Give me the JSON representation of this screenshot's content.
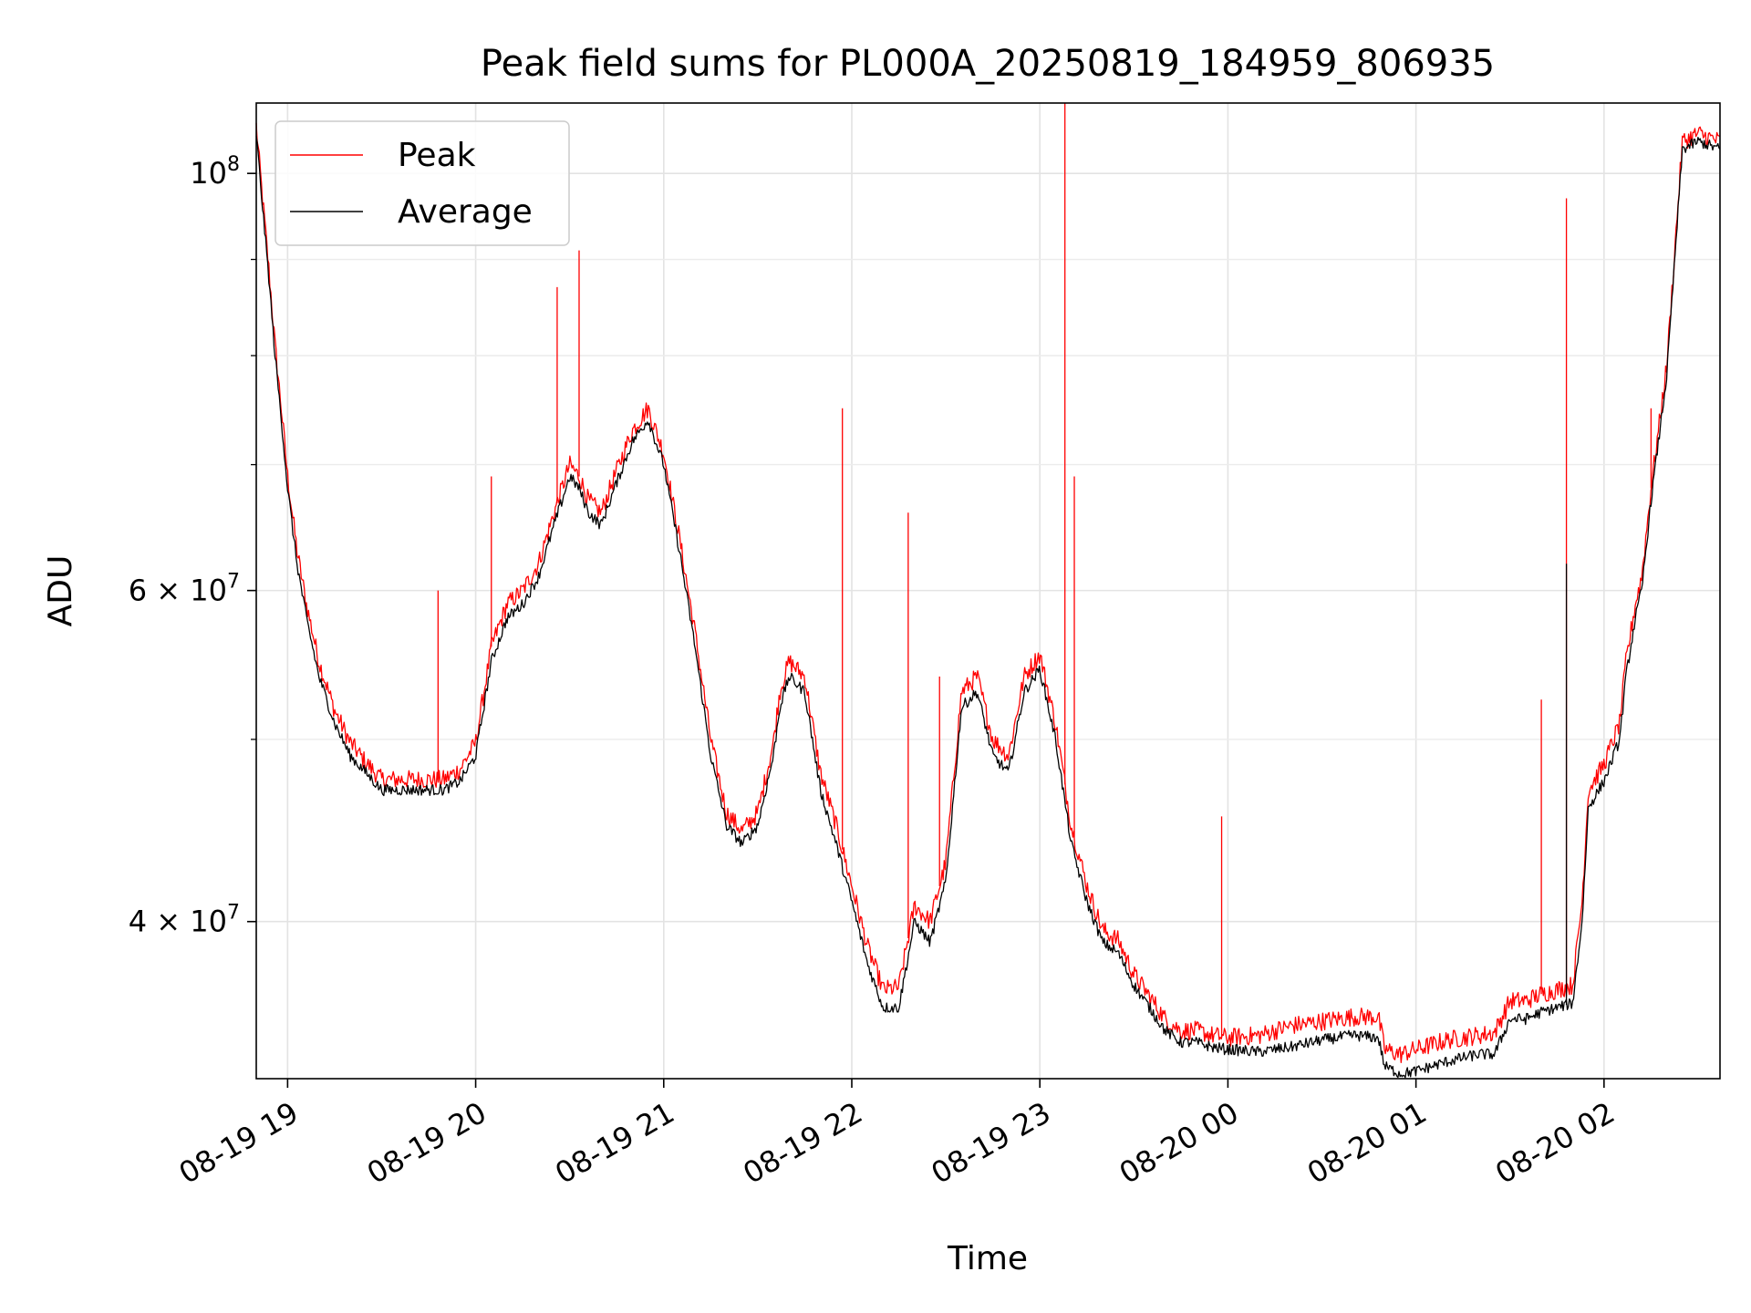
{
  "chart_data": {
    "type": "line",
    "title": "Peak field sums for PL000A_20250819_184959_806935",
    "xlabel": "Time",
    "ylabel": "ADU",
    "y_scale": "log",
    "ylim": [
      33000000,
      109000000
    ],
    "xlim": [
      "2025-08-19 18:50",
      "2025-08-20 02:37"
    ],
    "grid": true,
    "legend_position": "upper-left",
    "x_ticks": [
      {
        "t": "2025-08-19 19:00",
        "label": "08-19 19"
      },
      {
        "t": "2025-08-19 20:00",
        "label": "08-19 20"
      },
      {
        "t": "2025-08-19 21:00",
        "label": "08-19 21"
      },
      {
        "t": "2025-08-19 22:00",
        "label": "08-19 22"
      },
      {
        "t": "2025-08-19 23:00",
        "label": "08-19 23"
      },
      {
        "t": "2025-08-20 00:00",
        "label": "08-20 00"
      },
      {
        "t": "2025-08-20 01:00",
        "label": "08-20 01"
      },
      {
        "t": "2025-08-20 02:00",
        "label": "08-20 02"
      }
    ],
    "y_major_ticks": [
      {
        "v": 40000000,
        "base": "4 × 10",
        "exp": "7"
      },
      {
        "v": 60000000,
        "base": "6 × 10",
        "exp": "7"
      },
      {
        "v": 100000000,
        "base": "10",
        "exp": "8"
      }
    ],
    "y_minor_ticks": [
      50000000,
      70000000,
      80000000,
      90000000
    ],
    "series": [
      {
        "name": "Average",
        "color": "#000000",
        "x": [
          "2025-08-19 18:50",
          "2025-08-19 18:52",
          "2025-08-19 18:54",
          "2025-08-19 18:56",
          "2025-08-19 18:58",
          "2025-08-19 19:00",
          "2025-08-19 19:03",
          "2025-08-19 19:06",
          "2025-08-19 19:10",
          "2025-08-19 19:15",
          "2025-08-19 19:20",
          "2025-08-19 19:25",
          "2025-08-19 19:30",
          "2025-08-19 19:40",
          "2025-08-19 19:50",
          "2025-08-19 19:55",
          "2025-08-19 20:00",
          "2025-08-19 20:05",
          "2025-08-19 20:10",
          "2025-08-19 20:15",
          "2025-08-19 20:20",
          "2025-08-19 20:25",
          "2025-08-19 20:30",
          "2025-08-19 20:33",
          "2025-08-19 20:36",
          "2025-08-19 20:40",
          "2025-08-19 20:45",
          "2025-08-19 20:50",
          "2025-08-19 20:55",
          "2025-08-19 21:00",
          "2025-08-19 21:05",
          "2025-08-19 21:10",
          "2025-08-19 21:15",
          "2025-08-19 21:20",
          "2025-08-19 21:25",
          "2025-08-19 21:30",
          "2025-08-19 21:35",
          "2025-08-19 21:37",
          "2025-08-19 21:40",
          "2025-08-19 21:45",
          "2025-08-19 21:50",
          "2025-08-19 21:55",
          "2025-08-19 22:00",
          "2025-08-19 22:05",
          "2025-08-19 22:10",
          "2025-08-19 22:15",
          "2025-08-19 22:20",
          "2025-08-19 22:25",
          "2025-08-19 22:30",
          "2025-08-19 22:35",
          "2025-08-19 22:40",
          "2025-08-19 22:45",
          "2025-08-19 22:50",
          "2025-08-19 22:55",
          "2025-08-19 23:00",
          "2025-08-19 23:05",
          "2025-08-19 23:10",
          "2025-08-19 23:15",
          "2025-08-19 23:20",
          "2025-08-19 23:25",
          "2025-08-19 23:30",
          "2025-08-19 23:35",
          "2025-08-19 23:40",
          "2025-08-19 23:45",
          "2025-08-19 23:50",
          "2025-08-19 23:55",
          "2025-08-20 00:00",
          "2025-08-20 00:10",
          "2025-08-20 00:20",
          "2025-08-20 00:30",
          "2025-08-20 00:40",
          "2025-08-20 00:48",
          "2025-08-20 00:50",
          "2025-08-20 00:55",
          "2025-08-20 01:00",
          "2025-08-20 01:10",
          "2025-08-20 01:20",
          "2025-08-20 01:25",
          "2025-08-20 01:30",
          "2025-08-20 01:35",
          "2025-08-20 01:40",
          "2025-08-20 01:45",
          "2025-08-20 01:50",
          "2025-08-20 01:53",
          "2025-08-20 01:55",
          "2025-08-20 02:00",
          "2025-08-20 02:05",
          "2025-08-20 02:07",
          "2025-08-20 02:10",
          "2025-08-20 02:12",
          "2025-08-20 02:15",
          "2025-08-20 02:20",
          "2025-08-20 02:25",
          "2025-08-20 02:30",
          "2025-08-20 02:37"
        ],
        "y": [
          105000000,
          96000000,
          88000000,
          80000000,
          74000000,
          68000000,
          62000000,
          58000000,
          54000000,
          51000000,
          49000000,
          48000000,
          47000000,
          47000000,
          47000000,
          47500000,
          49000000,
          55000000,
          58000000,
          59000000,
          61000000,
          65000000,
          69000000,
          68000000,
          66000000,
          65000000,
          68500000,
          72000000,
          74000000,
          70000000,
          63000000,
          56000000,
          49000000,
          45000000,
          44000000,
          45000000,
          49000000,
          52000000,
          54000000,
          53000000,
          47000000,
          44000000,
          41000000,
          38000000,
          36000000,
          36000000,
          40000000,
          39000000,
          42000000,
          52000000,
          53000000,
          49000000,
          48000000,
          53000000,
          54500000,
          50000000,
          44000000,
          41000000,
          39000000,
          38500000,
          37000000,
          36000000,
          35000000,
          34500000,
          34500000,
          34300000,
          34200000,
          34100000,
          34300000,
          34600000,
          34800000,
          34700000,
          33500000,
          33200000,
          33300000,
          33700000,
          34000000,
          34000000,
          35500000,
          35500000,
          35800000,
          36000000,
          36200000,
          40000000,
          46000000,
          47500000,
          50000000,
          54000000,
          58000000,
          60000000,
          67000000,
          78000000,
          103000000,
          104000000,
          103000000
        ]
      },
      {
        "name": "Peak",
        "color": "#ff0000",
        "x": [
          "2025-08-19 18:50",
          "2025-08-19 18:52",
          "2025-08-19 18:54",
          "2025-08-19 18:56",
          "2025-08-19 18:58",
          "2025-08-19 19:00",
          "2025-08-19 19:03",
          "2025-08-19 19:06",
          "2025-08-19 19:10",
          "2025-08-19 19:15",
          "2025-08-19 19:20",
          "2025-08-19 19:25",
          "2025-08-19 19:30",
          "2025-08-19 19:40",
          "2025-08-19 19:50",
          "2025-08-19 19:55",
          "2025-08-19 20:00",
          "2025-08-19 20:05",
          "2025-08-19 20:10",
          "2025-08-19 20:15",
          "2025-08-19 20:20",
          "2025-08-19 20:25",
          "2025-08-19 20:30",
          "2025-08-19 20:33",
          "2025-08-19 20:36",
          "2025-08-19 20:40",
          "2025-08-19 20:45",
          "2025-08-19 20:50",
          "2025-08-19 20:55",
          "2025-08-19 21:00",
          "2025-08-19 21:05",
          "2025-08-19 21:10",
          "2025-08-19 21:15",
          "2025-08-19 21:20",
          "2025-08-19 21:25",
          "2025-08-19 21:30",
          "2025-08-19 21:35",
          "2025-08-19 21:37",
          "2025-08-19 21:40",
          "2025-08-19 21:45",
          "2025-08-19 21:50",
          "2025-08-19 21:55",
          "2025-08-19 22:00",
          "2025-08-19 22:05",
          "2025-08-19 22:10",
          "2025-08-19 22:15",
          "2025-08-19 22:20",
          "2025-08-19 22:25",
          "2025-08-19 22:30",
          "2025-08-19 22:35",
          "2025-08-19 22:40",
          "2025-08-19 22:45",
          "2025-08-19 22:50",
          "2025-08-19 22:55",
          "2025-08-19 23:00",
          "2025-08-19 23:05",
          "2025-08-19 23:10",
          "2025-08-19 23:15",
          "2025-08-19 23:20",
          "2025-08-19 23:25",
          "2025-08-19 23:30",
          "2025-08-19 23:35",
          "2025-08-19 23:40",
          "2025-08-19 23:45",
          "2025-08-19 23:50",
          "2025-08-19 23:55",
          "2025-08-20 00:00",
          "2025-08-20 00:10",
          "2025-08-20 00:20",
          "2025-08-20 00:30",
          "2025-08-20 00:40",
          "2025-08-20 00:48",
          "2025-08-20 00:50",
          "2025-08-20 00:55",
          "2025-08-20 01:00",
          "2025-08-20 01:10",
          "2025-08-20 01:20",
          "2025-08-20 01:25",
          "2025-08-20 01:30",
          "2025-08-20 01:35",
          "2025-08-20 01:40",
          "2025-08-20 01:45",
          "2025-08-20 01:50",
          "2025-08-20 01:53",
          "2025-08-20 01:55",
          "2025-08-20 02:00",
          "2025-08-20 02:05",
          "2025-08-20 02:07",
          "2025-08-20 02:10",
          "2025-08-20 02:12",
          "2025-08-20 02:15",
          "2025-08-20 02:20",
          "2025-08-20 02:25",
          "2025-08-20 02:30",
          "2025-08-20 02:37"
        ],
        "y": [
          106000000,
          97000000,
          89000000,
          81000000,
          75000000,
          69000000,
          63000000,
          59000000,
          55000000,
          51800000,
          49800000,
          48600000,
          47600000,
          47600000,
          47600000,
          48200000,
          49800000,
          56000000,
          59000000,
          60000000,
          62000000,
          66000000,
          70000000,
          69000000,
          67000000,
          66000000,
          69500000,
          73000000,
          75000000,
          71000000,
          64000000,
          57000000,
          50000000,
          45700000,
          44700000,
          45700000,
          49800000,
          53000000,
          55000000,
          54000000,
          48000000,
          45000000,
          41800000,
          38800000,
          36800000,
          36900000,
          40800000,
          40000000,
          43000000,
          53000000,
          54000000,
          50000000,
          49000000,
          54000000,
          55500000,
          51000000,
          45000000,
          41800000,
          39600000,
          39100000,
          37500000,
          36500000,
          35500000,
          35000000,
          35000000,
          34800000,
          34700000,
          34800000,
          35200000,
          35400000,
          35600000,
          35600000,
          34200000,
          34000000,
          34200000,
          34600000,
          34800000,
          34900000,
          36300000,
          36300000,
          36600000,
          36800000,
          37000000,
          41000000,
          47000000,
          48500000,
          51000000,
          55000000,
          59000000,
          61000000,
          68000000,
          79000000,
          104000000,
          105000000,
          104000000
        ]
      }
    ],
    "spikes": [
      {
        "series": "Peak",
        "t": "2025-08-19 20:26",
        "y": 87000000
      },
      {
        "series": "Peak",
        "t": "2025-08-19 20:33",
        "y": 91000000
      },
      {
        "series": "Peak",
        "t": "2025-08-19 20:05",
        "y": 69000000
      },
      {
        "series": "Peak",
        "t": "2025-08-19 19:48",
        "y": 60000000
      },
      {
        "series": "Peak",
        "t": "2025-08-19 21:57",
        "y": 75000000
      },
      {
        "series": "Peak",
        "t": "2025-08-19 22:18",
        "y": 66000000
      },
      {
        "series": "Peak",
        "t": "2025-08-19 22:28",
        "y": 54000000
      },
      {
        "series": "Peak",
        "t": "2025-08-19 23:08",
        "y": 109000000
      },
      {
        "series": "Peak",
        "t": "2025-08-19 23:11",
        "y": 69000000
      },
      {
        "series": "Peak",
        "t": "2025-08-19 23:58",
        "y": 45500000
      },
      {
        "series": "Peak",
        "t": "2025-08-20 01:40",
        "y": 52500000
      },
      {
        "series": "Peak",
        "t": "2025-08-20 01:48",
        "y": 97000000
      },
      {
        "series": "Peak",
        "t": "2025-08-20 02:15",
        "y": 75000000
      },
      {
        "series": "Average",
        "t": "2025-08-20 01:48",
        "y": 62000000
      }
    ]
  }
}
